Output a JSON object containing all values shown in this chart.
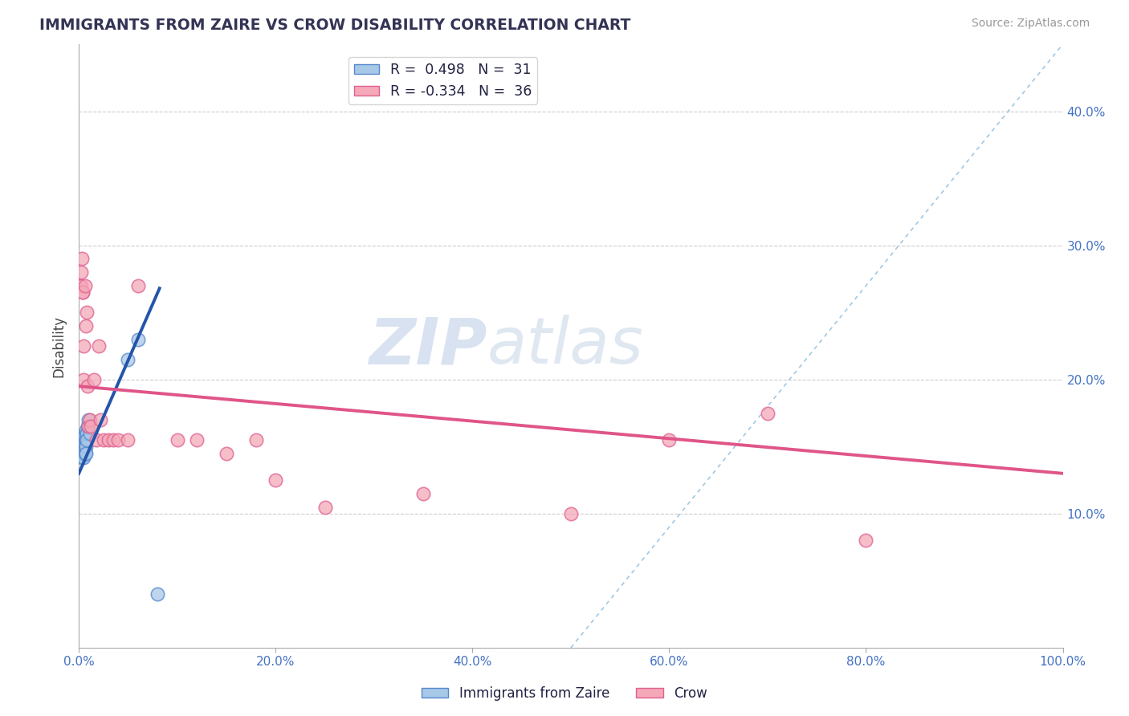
{
  "title": "IMMIGRANTS FROM ZAIRE VS CROW DISABILITY CORRELATION CHART",
  "source_text": "Source: ZipAtlas.com",
  "ylabel": "Disability",
  "watermark_zip": "ZIP",
  "watermark_atlas": "atlas",
  "xlim": [
    0.0,
    1.0
  ],
  "ylim": [
    0.0,
    0.45
  ],
  "xticks": [
    0.0,
    0.2,
    0.4,
    0.6,
    0.8,
    1.0
  ],
  "xtick_labels": [
    "0.0%",
    "20.0%",
    "40.0%",
    "60.0%",
    "80.0%",
    "100.0%"
  ],
  "yticks": [
    0.1,
    0.2,
    0.3,
    0.4
  ],
  "ytick_labels": [
    "10.0%",
    "20.0%",
    "30.0%",
    "40.0%"
  ],
  "blue_R": "0.498",
  "blue_N": "31",
  "pink_R": "-0.334",
  "pink_N": "36",
  "blue_fill_color": "#a8c8e8",
  "pink_fill_color": "#f4a8b8",
  "blue_edge_color": "#5588cc",
  "pink_edge_color": "#e06090",
  "blue_line_color": "#2255aa",
  "pink_line_color": "#e05588",
  "ref_line_color": "#88bbdd",
  "grid_color": "#cccccc",
  "title_color": "#333355",
  "axis_label_color": "#444444",
  "tick_color": "#4472c4",
  "legend_text_color": "#222244",
  "blue_scatter_x": [
    0.001,
    0.001,
    0.002,
    0.002,
    0.002,
    0.003,
    0.003,
    0.003,
    0.004,
    0.004,
    0.004,
    0.005,
    0.005,
    0.005,
    0.005,
    0.006,
    0.006,
    0.006,
    0.006,
    0.007,
    0.007,
    0.007,
    0.007,
    0.008,
    0.008,
    0.009,
    0.01,
    0.011,
    0.05,
    0.06,
    0.08
  ],
  "blue_scatter_y": [
    0.15,
    0.145,
    0.155,
    0.148,
    0.145,
    0.155,
    0.148,
    0.142,
    0.155,
    0.15,
    0.145,
    0.158,
    0.152,
    0.148,
    0.142,
    0.158,
    0.152,
    0.148,
    0.145,
    0.162,
    0.155,
    0.15,
    0.145,
    0.16,
    0.155,
    0.165,
    0.17,
    0.16,
    0.215,
    0.23,
    0.04
  ],
  "pink_scatter_x": [
    0.001,
    0.002,
    0.002,
    0.003,
    0.004,
    0.004,
    0.005,
    0.005,
    0.006,
    0.007,
    0.008,
    0.009,
    0.01,
    0.011,
    0.012,
    0.015,
    0.018,
    0.02,
    0.022,
    0.025,
    0.03,
    0.035,
    0.04,
    0.05,
    0.06,
    0.1,
    0.12,
    0.15,
    0.18,
    0.2,
    0.25,
    0.35,
    0.5,
    0.6,
    0.7,
    0.8
  ],
  "pink_scatter_y": [
    0.27,
    0.27,
    0.28,
    0.29,
    0.265,
    0.265,
    0.225,
    0.2,
    0.27,
    0.24,
    0.25,
    0.195,
    0.165,
    0.17,
    0.165,
    0.2,
    0.155,
    0.225,
    0.17,
    0.155,
    0.155,
    0.155,
    0.155,
    0.155,
    0.27,
    0.155,
    0.155,
    0.145,
    0.155,
    0.125,
    0.105,
    0.115,
    0.1,
    0.155,
    0.175,
    0.08
  ],
  "blue_line_x": [
    0.0,
    0.082
  ],
  "blue_line_y": [
    0.13,
    0.268
  ],
  "pink_line_x": [
    0.0,
    1.0
  ],
  "pink_line_y": [
    0.195,
    0.13
  ],
  "ref_line_x": [
    0.5,
    1.0
  ],
  "ref_line_y": [
    0.0,
    0.45
  ]
}
